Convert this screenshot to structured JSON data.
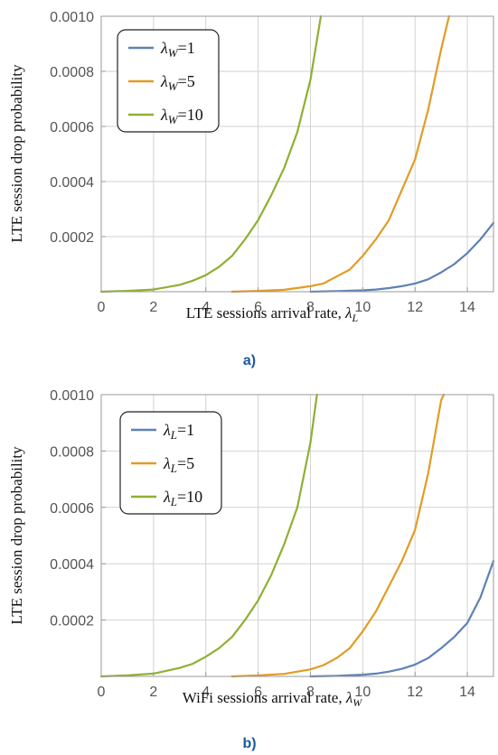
{
  "chart_data": [
    {
      "type": "line",
      "caption": "a)",
      "ylabel": "LTE session drop probability",
      "xlabel_prefix": "LTE sessions arrival rate, ",
      "xlabel_symbol": "λ",
      "xlabel_sub": "L",
      "xlim": [
        0,
        15
      ],
      "ylim": [
        0,
        0.001
      ],
      "xticks": [
        0,
        2,
        4,
        6,
        8,
        10,
        12,
        14
      ],
      "yticks": [
        0.0002,
        0.0004,
        0.0006,
        0.0008,
        0.001
      ],
      "ytick_labels": [
        "0.0002",
        "0.0004",
        "0.0006",
        "0.0008",
        "0.0010"
      ],
      "grid": true,
      "legend_position": "top-left",
      "series": [
        {
          "name": "λW=1",
          "symbol": "λ",
          "sub": "W",
          "value": "=1",
          "color": "#5e81b5",
          "x": [
            8,
            9,
            10,
            10.5,
            11,
            11.5,
            12,
            12.5,
            13,
            13.5,
            14,
            14.5,
            15
          ],
          "y": [
            0,
            2e-06,
            5e-06,
            8e-06,
            1.3e-05,
            2e-05,
            3e-05,
            4.5e-05,
            7e-05,
            0.0001,
            0.00014,
            0.00019,
            0.00025
          ]
        },
        {
          "name": "λW=5",
          "symbol": "λ",
          "sub": "W",
          "value": "=5",
          "color": "#e19c24",
          "x": [
            5,
            6,
            7,
            8,
            8.5,
            9,
            9.5,
            10,
            10.5,
            11,
            11.5,
            12,
            12.5,
            13,
            13.3
          ],
          "y": [
            0,
            3e-06,
            7e-06,
            2e-05,
            3e-05,
            5.5e-05,
            8e-05,
            0.00013,
            0.00019,
            0.00026,
            0.00037,
            0.00048,
            0.00066,
            0.00088,
            0.001
          ]
        },
        {
          "name": "λW=10",
          "symbol": "λ",
          "sub": "W",
          "value": "=10",
          "color": "#8fb032",
          "x": [
            0,
            1,
            2,
            3,
            3.5,
            4,
            4.5,
            5,
            5.5,
            6,
            6.5,
            7,
            7.5,
            8,
            8.4
          ],
          "y": [
            0,
            3e-06,
            8e-06,
            2.5e-05,
            4e-05,
            6e-05,
            9e-05,
            0.00013,
            0.00019,
            0.00026,
            0.00035,
            0.00045,
            0.00058,
            0.00077,
            0.001
          ]
        }
      ]
    },
    {
      "type": "line",
      "caption": "b)",
      "ylabel": "LTE session drop probability",
      "xlabel_prefix": "WiFi sessions arrival rate, ",
      "xlabel_symbol": "λ",
      "xlabel_sub": "W",
      "xlim": [
        0,
        15
      ],
      "ylim": [
        0,
        0.001
      ],
      "xticks": [
        0,
        2,
        4,
        6,
        8,
        10,
        12,
        14
      ],
      "yticks": [
        0.0002,
        0.0004,
        0.0006,
        0.0008,
        0.001
      ],
      "ytick_labels": [
        "0.0002",
        "0.0004",
        "0.0006",
        "0.0008",
        "0.0010"
      ],
      "grid": true,
      "legend_position": "top-left",
      "series": [
        {
          "name": "λL=1",
          "symbol": "λ",
          "sub": "L",
          "value": "=1",
          "color": "#5e81b5",
          "x": [
            8,
            9,
            10,
            10.5,
            11,
            11.5,
            12,
            12.5,
            13,
            13.5,
            14,
            14.5,
            15
          ],
          "y": [
            0,
            2e-06,
            6e-06,
            1e-05,
            1.7e-05,
            2.7e-05,
            4.2e-05,
            6.5e-05,
            0.0001,
            0.00014,
            0.00019,
            0.00028,
            0.00041
          ]
        },
        {
          "name": "λL=5",
          "symbol": "λ",
          "sub": "L",
          "value": "=5",
          "color": "#e19c24",
          "x": [
            5,
            6,
            7,
            8,
            8.5,
            9,
            9.5,
            10,
            10.5,
            11,
            11.5,
            12,
            12.5,
            13,
            13.1
          ],
          "y": [
            0,
            4e-06,
            9e-06,
            2.5e-05,
            4e-05,
            6.5e-05,
            0.0001,
            0.00016,
            0.00023,
            0.00032,
            0.00041,
            0.00052,
            0.00072,
            0.00098,
            0.001
          ]
        },
        {
          "name": "λL=10",
          "symbol": "λ",
          "sub": "L",
          "value": "=10",
          "color": "#8fb032",
          "x": [
            0,
            1,
            2,
            3,
            3.5,
            4,
            4.5,
            5,
            5.5,
            6,
            6.5,
            7,
            7.5,
            8,
            8.25
          ],
          "y": [
            0,
            4e-06,
            1e-05,
            3e-05,
            4.5e-05,
            7e-05,
            0.0001,
            0.00014,
            0.0002,
            0.00027,
            0.00036,
            0.00047,
            0.0006,
            0.00083,
            0.001
          ]
        }
      ]
    }
  ]
}
